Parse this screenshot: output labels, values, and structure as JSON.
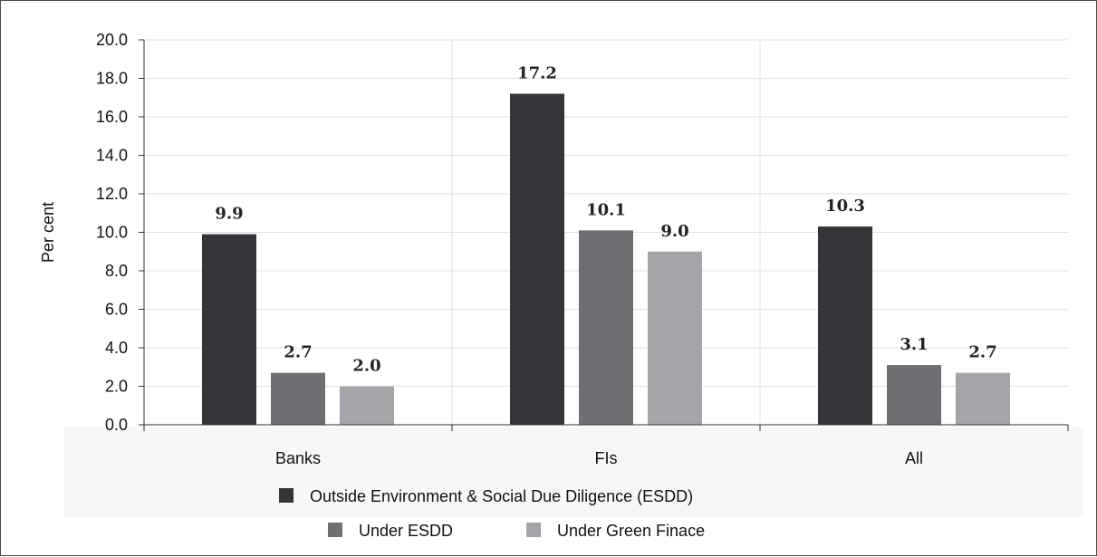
{
  "chart_data": {
    "type": "bar",
    "title": "",
    "xlabel": "",
    "ylabel": "Per cent",
    "ylim": [
      0,
      20
    ],
    "ytick_step": 2,
    "ytick_decimals": 1,
    "grid": true,
    "legend_position": "bottom",
    "categories": [
      "Banks",
      "FIs",
      "All"
    ],
    "series": [
      {
        "name": "Outside Environment & Social Due Diligence (ESDD)",
        "color": "#353539",
        "values": [
          9.9,
          17.2,
          10.3
        ],
        "labels": [
          "9.9",
          "17.2",
          "10.3"
        ]
      },
      {
        "name": "Under ESDD",
        "color": "#6e6f72",
        "values": [
          2.7,
          10.1,
          3.1
        ],
        "labels": [
          "2.7",
          "10.1",
          "3.1"
        ]
      },
      {
        "name": "Under Green Finace",
        "color": "#a4a5a8",
        "values": [
          2.0,
          9.0,
          2.7
        ],
        "labels": [
          "2.0",
          "9.0",
          "2.7"
        ]
      }
    ]
  }
}
